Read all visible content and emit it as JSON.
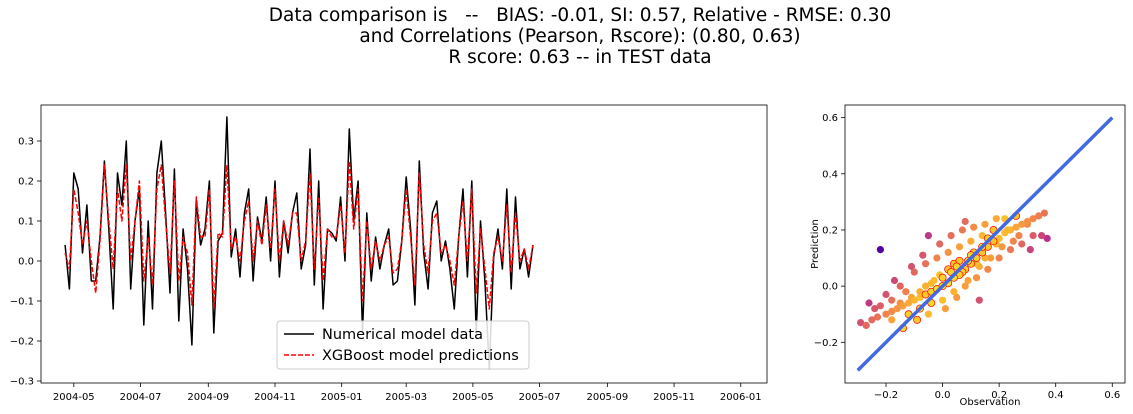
{
  "figure": {
    "title_lines": [
      "Data comparison is   --   BIAS: -0.01, SI: 0.57, Relative - RMSE: 0.30",
      "and Correlations (Pearson, Rscore): (0.80, 0.63)",
      "R score: 0.63 -- in TEST data"
    ]
  },
  "chart_data": [
    {
      "type": "line",
      "xlabel": "",
      "ylabel": "",
      "x_range": [
        "2004-04-01",
        "2006-01-25"
      ],
      "ylim": [
        -0.305,
        0.39
      ],
      "x_tick_labels": [
        "2004-05",
        "2004-07",
        "2004-09",
        "2004-11",
        "2005-01",
        "2005-03",
        "2005-05",
        "2005-07",
        "2005-09",
        "2005-11",
        "2006-01"
      ],
      "y_ticks": [
        -0.3,
        -0.2,
        -0.1,
        0.0,
        0.1,
        0.2,
        0.3
      ],
      "y_tick_labels": [
        "−0.3",
        "−0.2",
        "−0.1",
        "0.0",
        "0.1",
        "0.2",
        "0.3"
      ],
      "legend": {
        "placement": "lower-center",
        "entries": [
          "Numerical model data",
          "XGBoost model predictions"
        ]
      },
      "series": [
        {
          "name": "Numerical model data",
          "color": "#000000",
          "style": "solid",
          "x_start": "2004-04-23",
          "step_days": 4,
          "values": [
            0.04,
            -0.07,
            0.22,
            0.18,
            0.02,
            0.14,
            -0.05,
            -0.05,
            0.06,
            0.25,
            0.08,
            -0.12,
            0.22,
            0.14,
            0.3,
            -0.07,
            0.1,
            0.18,
            -0.16,
            0.1,
            -0.12,
            0.22,
            0.3,
            0.12,
            -0.08,
            0.23,
            -0.15,
            0.08,
            -0.02,
            -0.21,
            0.15,
            0.04,
            0.08,
            0.2,
            -0.18,
            0.05,
            0.07,
            0.36,
            0.01,
            0.08,
            -0.04,
            0.12,
            0.18,
            -0.05,
            0.11,
            0.05,
            0.16,
            0.0,
            0.2,
            -0.04,
            0.1,
            0.02,
            0.12,
            0.17,
            -0.02,
            0.04,
            0.28,
            -0.06,
            0.2,
            -0.12,
            0.08,
            0.07,
            0.05,
            0.16,
            0.0,
            0.33,
            0.1,
            0.2,
            -0.18,
            0.12,
            -0.05,
            0.06,
            -0.02,
            0.04,
            0.08,
            -0.06,
            -0.05,
            0.05,
            0.21,
            0.08,
            -0.11,
            0.25,
            0.02,
            -0.07,
            0.12,
            0.15,
            0.0,
            0.05,
            -0.02,
            -0.12,
            0.06,
            0.18,
            -0.04,
            0.2,
            -0.18,
            0.1,
            -0.05,
            -0.27,
            0.01,
            0.08,
            -0.02,
            0.18,
            -0.07,
            0.16,
            -0.02,
            0.03,
            -0.04,
            0.04
          ]
        },
        {
          "name": "XGBoost model predictions",
          "color": "#ff0000",
          "style": "dashed",
          "x_start": "2004-04-23",
          "step_days": 4,
          "values": [
            0.02,
            -0.02,
            0.18,
            0.12,
            0.04,
            0.1,
            0.0,
            -0.08,
            0.05,
            0.24,
            0.1,
            -0.02,
            0.18,
            0.1,
            0.24,
            0.0,
            0.1,
            0.2,
            -0.05,
            0.06,
            -0.06,
            0.18,
            0.24,
            0.1,
            -0.03,
            0.2,
            -0.05,
            0.06,
            0.02,
            -0.11,
            0.16,
            0.06,
            0.06,
            0.18,
            -0.12,
            0.07,
            0.06,
            0.24,
            0.03,
            0.06,
            0.0,
            0.1,
            0.15,
            0.0,
            0.1,
            0.04,
            0.14,
            0.03,
            0.18,
            0.0,
            0.1,
            0.04,
            0.12,
            0.12,
            0.0,
            0.05,
            0.22,
            -0.02,
            0.16,
            -0.05,
            0.08,
            0.06,
            0.06,
            0.14,
            0.02,
            0.25,
            0.08,
            0.18,
            -0.1,
            0.1,
            -0.02,
            0.05,
            0.0,
            0.04,
            0.06,
            -0.03,
            -0.02,
            0.05,
            0.18,
            0.06,
            -0.06,
            0.22,
            0.04,
            -0.03,
            0.1,
            0.12,
            0.02,
            0.04,
            0.0,
            -0.06,
            0.06,
            0.15,
            0.0,
            0.18,
            -0.08,
            0.08,
            -0.02,
            -0.12,
            0.02,
            0.06,
            0.0,
            0.14,
            -0.03,
            0.12,
            0.0,
            0.03,
            -0.02,
            0.04
          ]
        }
      ]
    },
    {
      "type": "scatter",
      "xlabel": "Observation",
      "ylabel": "Prediction",
      "xlim": [
        -0.345,
        0.645
      ],
      "ylim": [
        -0.345,
        0.645
      ],
      "x_ticks": [
        -0.2,
        0.0,
        0.2,
        0.4,
        0.6
      ],
      "x_tick_labels": [
        "−0.2",
        "0.0",
        "0.2",
        "0.4",
        "0.6"
      ],
      "y_ticks": [
        -0.2,
        0.0,
        0.2,
        0.4,
        0.6
      ],
      "y_tick_labels": [
        "−0.2",
        "0.0",
        "0.2",
        "0.4",
        "0.6"
      ],
      "color_scale": "plasma",
      "marker_edge_color": "#ff0000",
      "reference_line": {
        "x": [
          -0.3,
          0.6
        ],
        "y": [
          -0.3,
          0.6
        ],
        "color": "#4169e1"
      },
      "points": [
        [
          -0.29,
          -0.13
        ],
        [
          -0.27,
          -0.14
        ],
        [
          -0.25,
          -0.12
        ],
        [
          -0.23,
          -0.11
        ],
        [
          -0.2,
          -0.1
        ],
        [
          -0.18,
          -0.09
        ],
        [
          -0.16,
          -0.08
        ],
        [
          -0.14,
          -0.07
        ],
        [
          -0.12,
          -0.06
        ],
        [
          -0.1,
          -0.05
        ],
        [
          -0.08,
          -0.04
        ],
        [
          -0.06,
          -0.03
        ],
        [
          -0.04,
          -0.02
        ],
        [
          -0.02,
          -0.01
        ],
        [
          0.0,
          0.0
        ],
        [
          0.02,
          0.01
        ],
        [
          0.04,
          0.03
        ],
        [
          0.06,
          0.04
        ],
        [
          0.08,
          0.06
        ],
        [
          0.1,
          0.08
        ],
        [
          0.12,
          0.1
        ],
        [
          0.14,
          0.12
        ],
        [
          0.16,
          0.14
        ],
        [
          0.18,
          0.16
        ],
        [
          0.2,
          0.17
        ],
        [
          0.22,
          0.19
        ],
        [
          0.24,
          0.2
        ],
        [
          0.26,
          0.21
        ],
        [
          0.28,
          0.22
        ],
        [
          0.3,
          0.23
        ],
        [
          0.32,
          0.24
        ],
        [
          0.34,
          0.25
        ],
        [
          0.36,
          0.26
        ],
        [
          -0.22,
          -0.07
        ],
        [
          -0.2,
          -0.03
        ],
        [
          -0.18,
          -0.12
        ],
        [
          -0.15,
          0.0
        ],
        [
          -0.12,
          -0.1
        ],
        [
          -0.1,
          0.05
        ],
        [
          -0.08,
          -0.08
        ],
        [
          -0.06,
          0.08
        ],
        [
          -0.04,
          -0.06
        ],
        [
          -0.02,
          0.1
        ],
        [
          0.0,
          -0.05
        ],
        [
          0.02,
          0.12
        ],
        [
          0.04,
          -0.02
        ],
        [
          0.06,
          0.14
        ],
        [
          0.08,
          0.0
        ],
        [
          0.1,
          0.16
        ],
        [
          0.12,
          0.03
        ],
        [
          0.14,
          0.18
        ],
        [
          0.16,
          0.06
        ],
        [
          0.18,
          0.2
        ],
        [
          0.2,
          0.1
        ],
        [
          0.22,
          0.24
        ],
        [
          0.24,
          0.13
        ],
        [
          0.26,
          0.25
        ],
        [
          0.28,
          0.15
        ],
        [
          0.3,
          0.22
        ],
        [
          0.32,
          0.18
        ],
        [
          -0.24,
          -0.08
        ],
        [
          -0.17,
          0.02
        ],
        [
          -0.14,
          -0.15
        ],
        [
          -0.11,
          0.07
        ],
        [
          -0.07,
          0.11
        ],
        [
          -0.05,
          -0.1
        ],
        [
          -0.01,
          0.15
        ],
        [
          0.01,
          -0.08
        ],
        [
          0.03,
          0.18
        ],
        [
          0.05,
          -0.04
        ],
        [
          0.07,
          0.2
        ],
        [
          0.09,
          0.02
        ],
        [
          0.11,
          0.21
        ],
        [
          0.13,
          0.07
        ],
        [
          0.15,
          0.22
        ],
        [
          0.17,
          0.1
        ],
        [
          0.19,
          0.24
        ],
        [
          0.21,
          0.14
        ],
        [
          0.23,
          0.2
        ],
        [
          0.25,
          0.16
        ],
        [
          0.27,
          0.18
        ],
        [
          0.35,
          0.18
        ],
        [
          -0.22,
          0.13
        ],
        [
          -0.09,
          -0.12
        ],
        [
          0.13,
          -0.05
        ],
        [
          -0.05,
          0.18
        ],
        [
          0.08,
          0.23
        ],
        [
          0.31,
          0.13
        ],
        [
          0.37,
          0.17
        ],
        [
          -0.26,
          -0.06
        ],
        [
          -0.13,
          -0.02
        ],
        [
          -0.03,
          0.02
        ],
        [
          0.03,
          0.05
        ],
        [
          0.06,
          0.09
        ],
        [
          -0.08,
          -0.02
        ],
        [
          0.11,
          0.12
        ],
        [
          0.16,
          0.17
        ],
        [
          -0.18,
          -0.05
        ],
        [
          -0.01,
          0.04
        ],
        [
          0.05,
          0.07
        ],
        [
          0.09,
          0.09
        ],
        [
          -0.11,
          -0.04
        ],
        [
          0.14,
          0.14
        ],
        [
          0.19,
          0.15
        ],
        [
          -0.06,
          0.0
        ],
        [
          0.0,
          0.03
        ],
        [
          0.07,
          0.05
        ],
        [
          -0.15,
          -0.06
        ],
        [
          0.12,
          0.08
        ],
        [
          0.02,
          0.06
        ],
        [
          -0.04,
          0.01
        ],
        [
          0.04,
          0.08
        ],
        [
          0.1,
          0.11
        ],
        [
          0.15,
          0.1
        ]
      ]
    }
  ]
}
